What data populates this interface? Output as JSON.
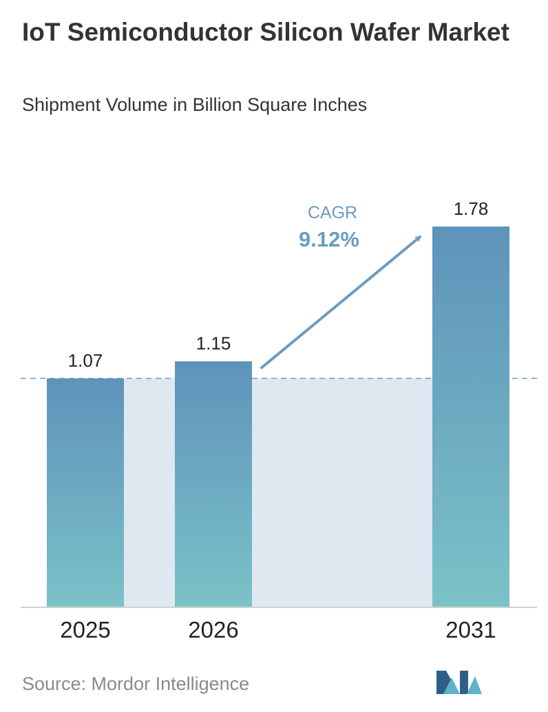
{
  "title": "IoT Semiconductor Silicon Wafer Market",
  "subtitle": "Shipment Volume in Billion Square Inches",
  "chart_data": {
    "type": "bar",
    "title": "IoT Semiconductor Silicon Wafer Market",
    "subtitle": "Shipment Volume in Billion Square Inches",
    "categories": [
      "2025",
      "2026",
      "2031"
    ],
    "values": [
      1.07,
      1.15,
      1.78
    ],
    "value_labels": [
      "1.07",
      "1.15",
      "1.78"
    ],
    "ylim": [
      0,
      1.78
    ],
    "grid": false,
    "reference_line": 1.07,
    "annotation": {
      "label": "CAGR",
      "value": "9.12%"
    }
  },
  "colors": {
    "bar_top": "#5e93bb",
    "bar_bottom": "#7bc2c7",
    "shade": "#dfe8f1",
    "accent": "#6a9cc1",
    "axis": "#d0d0d0",
    "dash": "#6a9cc1"
  },
  "source": "Source:  Mordor Intelligence",
  "logo_icon": "mordor-intelligence-logo"
}
